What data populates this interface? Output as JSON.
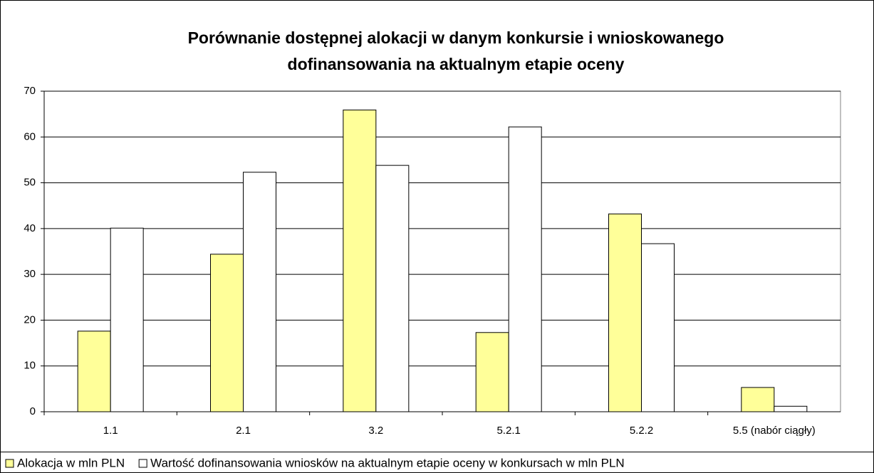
{
  "chart_data": {
    "type": "bar",
    "title": [
      "Porównanie dostępnej alokacji w danym konkursie i wnioskowanego",
      "dofinansowania na aktualnym etapie oceny"
    ],
    "categories": [
      "1.1",
      "2.1",
      "3.2",
      "5.2.1",
      "5.2.2",
      "5.5 (nabór ciągły)"
    ],
    "series": [
      {
        "name": "Alokacja w mln PLN",
        "color": "#ffff99",
        "values": [
          17.6,
          34.4,
          65.9,
          17.3,
          43.2,
          5.3
        ]
      },
      {
        "name": "Wartość dofinansowania wniosków na aktualnym etapie oceny w konkursach w mln PLN",
        "color": "#ffffff",
        "values": [
          40.1,
          52.3,
          53.8,
          62.2,
          36.7,
          1.2
        ]
      }
    ],
    "ylim": [
      0,
      70
    ],
    "yticks": [
      0,
      10,
      20,
      30,
      40,
      50,
      60,
      70
    ],
    "grid": true,
    "legend": "bottom"
  }
}
